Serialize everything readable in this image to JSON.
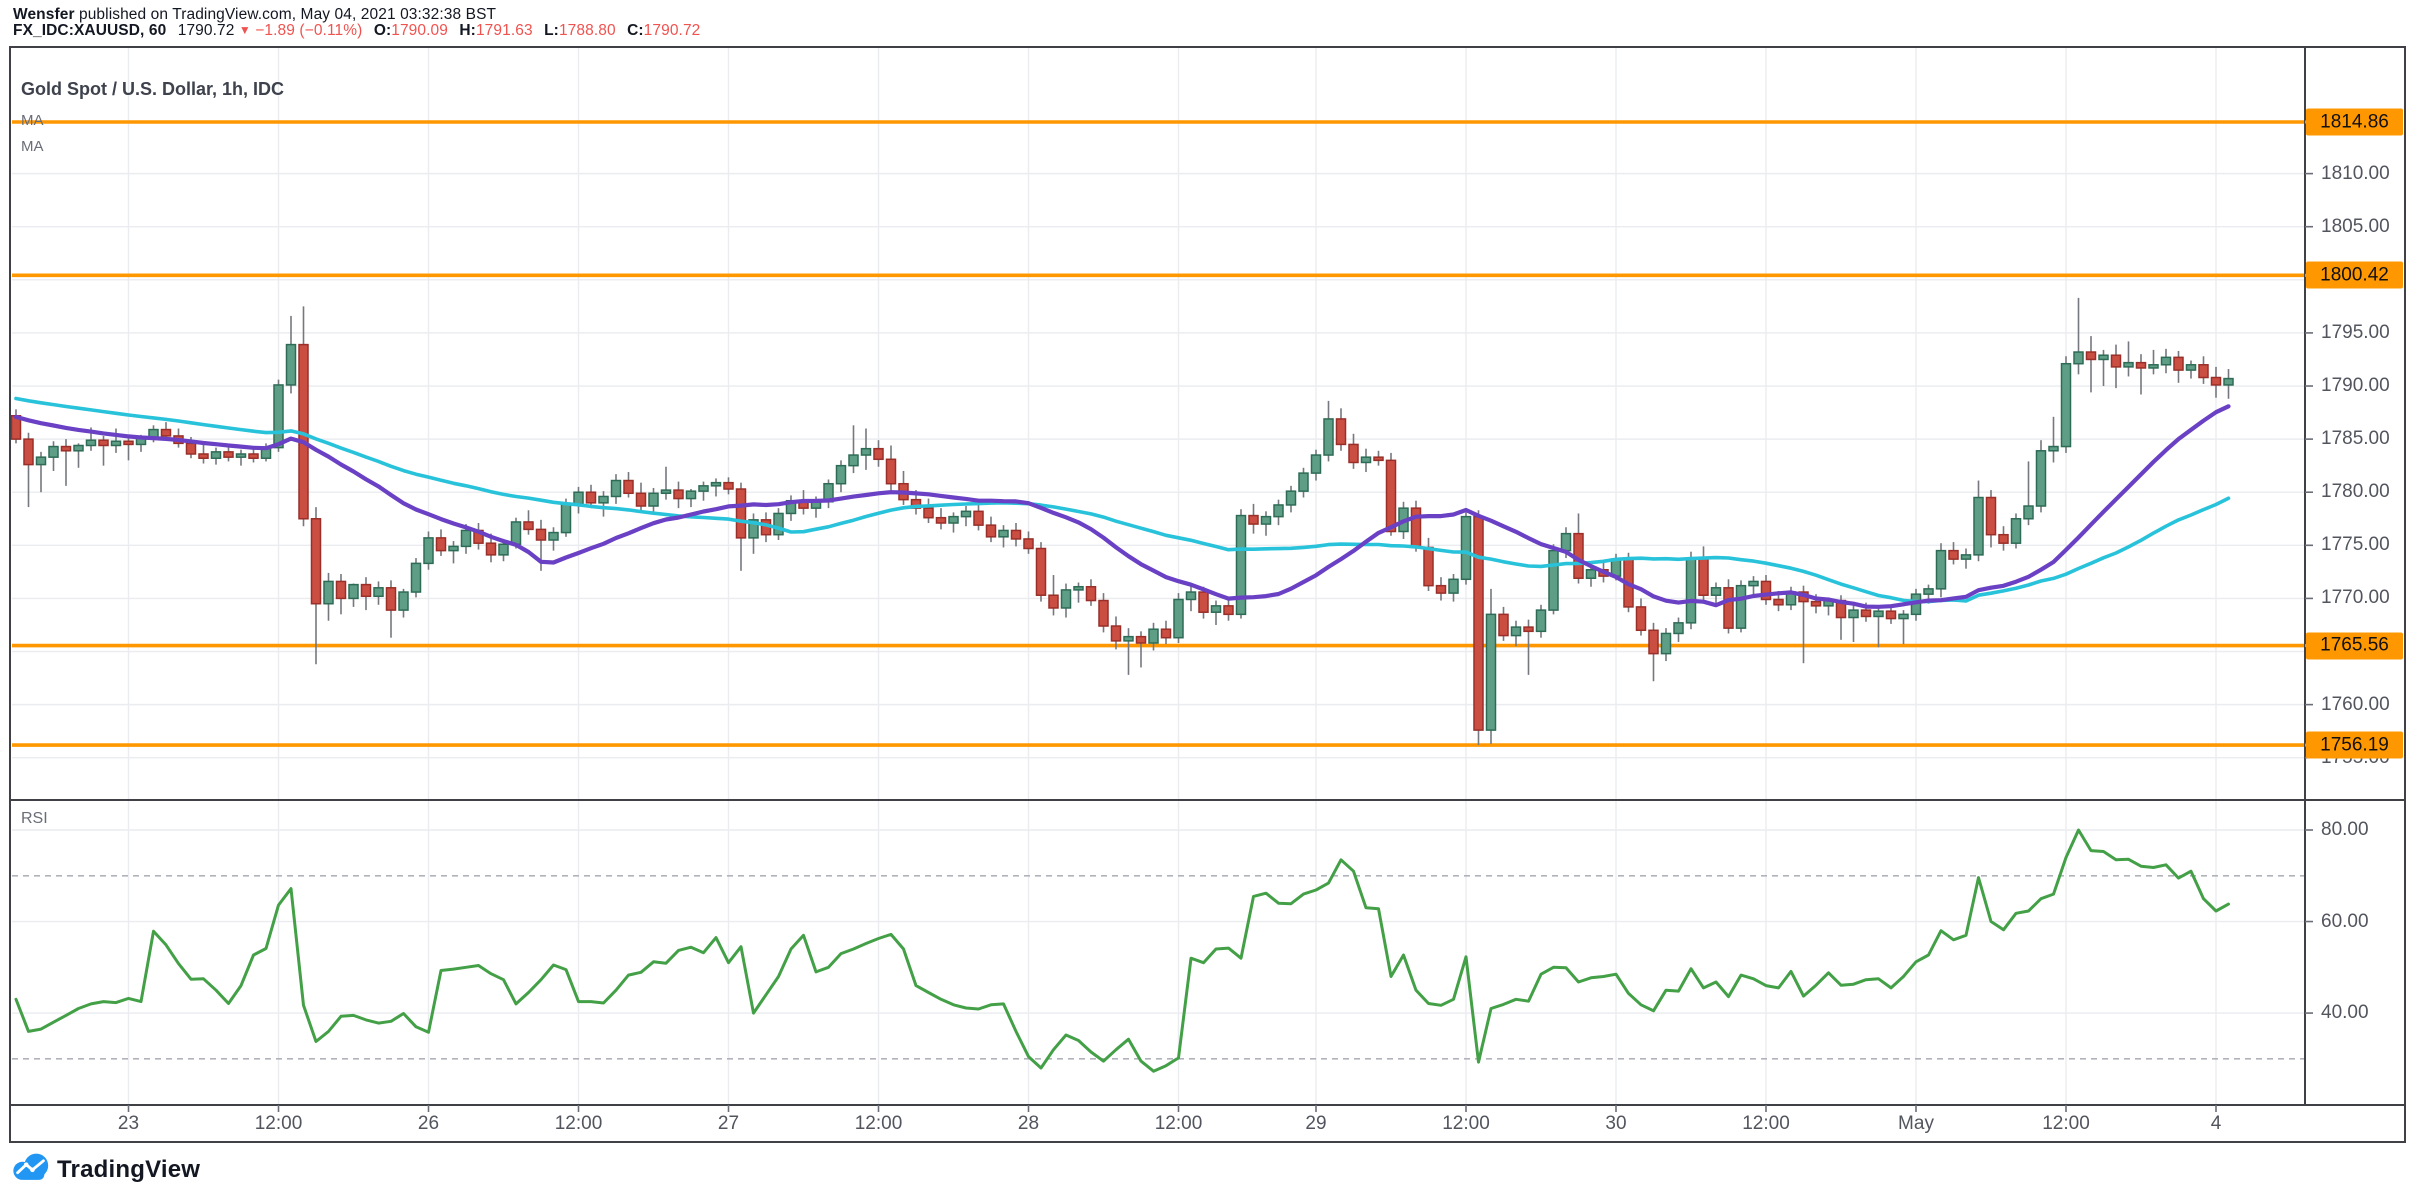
{
  "header": {
    "author": "Wensfer",
    "published_text": " published on TradingView.com, May 04, 2021 03:32:38 BST",
    "symbol": "FX_IDC:XAUUSD, 60",
    "last_price": "1790.72",
    "direction_icon": "▼",
    "change": "−1.89 (−0.11%)",
    "o_label": "O:",
    "o_value": "1790.09",
    "h_label": "H:",
    "h_value": "1791.63",
    "l_label": "L:",
    "l_value": "1788.80",
    "c_label": "C:",
    "c_value": "1790.72"
  },
  "chart": {
    "title": "Gold Spot / U.S. Dollar, 1h, IDC",
    "ma_labels": [
      "MA",
      "MA"
    ],
    "rsi_label": "RSI"
  },
  "watermark": {
    "brand": "TradingView"
  },
  "colors": {
    "up_fill": "#5f9e86",
    "up_stroke": "#2e6b56",
    "down_fill": "#cb4e42",
    "down_stroke": "#992f28",
    "wick": "#75787e",
    "ma_fast": "#6a40c4",
    "ma_slow": "#28c3da",
    "level": "#ff9800",
    "rsi_line": "#43a047",
    "grid": "#eaecef",
    "frame": "#3f4147",
    "axis_text": "#52555e",
    "accent_red": "#ef5350",
    "logo_blue": "#2196f3"
  },
  "chart_data": {
    "type": "candlestick+rsi",
    "title": "Gold Spot / U.S. Dollar, 1h, IDC",
    "interval": "1h",
    "legend_entries": [
      "MA",
      "MA",
      "RSI"
    ],
    "grid": true,
    "price_axis": {
      "plain_ticks": [
        1810,
        1805,
        1795,
        1790,
        1785,
        1780,
        1775,
        1770,
        1760,
        1755
      ],
      "tick_format_suffix": ".00",
      "level_badges": [
        "1814.86",
        "1800.42",
        "1765.56",
        "1756.19"
      ]
    },
    "level_lines": [
      1814.86,
      1800.42,
      1765.56,
      1756.19
    ],
    "grid_prices": [
      1810,
      1805,
      1800,
      1795,
      1790,
      1785,
      1780,
      1775,
      1770,
      1765,
      1760,
      1755
    ],
    "x_ticks": [
      {
        "label": "23",
        "bar": 9
      },
      {
        "label": "12:00",
        "bar": 21
      },
      {
        "label": "26",
        "bar": 33
      },
      {
        "label": "12:00",
        "bar": 45
      },
      {
        "label": "27",
        "bar": 57
      },
      {
        "label": "12:00",
        "bar": 69
      },
      {
        "label": "28",
        "bar": 81
      },
      {
        "label": "12:00",
        "bar": 93
      },
      {
        "label": "29",
        "bar": 104
      },
      {
        "label": "12:00",
        "bar": 116
      },
      {
        "label": "30",
        "bar": 128
      },
      {
        "label": "12:00",
        "bar": 140
      },
      {
        "label": "May",
        "bar": 152
      },
      {
        "label": "12:00",
        "bar": 164
      },
      {
        "label": "4",
        "bar": 176
      }
    ],
    "ma": {
      "fast_period": 20,
      "slow_period": 40,
      "seed_closes": [
        1791,
        1791,
        1791,
        1791,
        1791,
        1791,
        1791,
        1791,
        1791,
        1791,
        1791,
        1791,
        1790.8,
        1790.6,
        1790.4,
        1790.2,
        1790,
        1789.8,
        1789.6,
        1789.4,
        1789.2,
        1789,
        1788.8,
        1788.6,
        1788.4,
        1788.2,
        1788,
        1787.8,
        1787.6,
        1787.4,
        1787.2,
        1787,
        1786.8,
        1786.6,
        1786.4,
        1786.2,
        1786,
        1785.8,
        1785.6,
        1785.4
      ]
    },
    "rsi_axis": {
      "plain_ticks": [
        80,
        60,
        40
      ],
      "dashed_bands": [
        70,
        30
      ]
    },
    "candles": [
      [
        1787.2,
        1787.8,
        1784.6,
        1785.0
      ],
      [
        1785.0,
        1785.6,
        1778.6,
        1782.6
      ],
      [
        1782.6,
        1783.8,
        1780.0,
        1783.3
      ],
      [
        1783.3,
        1784.8,
        1782.0,
        1784.3
      ],
      [
        1784.3,
        1785.0,
        1780.6,
        1783.9
      ],
      [
        1783.9,
        1784.6,
        1782.3,
        1784.4
      ],
      [
        1784.4,
        1786.1,
        1783.9,
        1784.9
      ],
      [
        1784.9,
        1785.3,
        1782.5,
        1784.4
      ],
      [
        1784.4,
        1786.0,
        1783.7,
        1784.8
      ],
      [
        1784.8,
        1785.2,
        1783.0,
        1784.5
      ],
      [
        1784.5,
        1785.4,
        1783.8,
        1785.1
      ],
      [
        1785.1,
        1786.3,
        1784.7,
        1785.9
      ],
      [
        1785.9,
        1786.6,
        1784.9,
        1785.3
      ],
      [
        1785.3,
        1786.0,
        1784.2,
        1784.6
      ],
      [
        1784.6,
        1785.2,
        1783.2,
        1783.6
      ],
      [
        1783.6,
        1784.5,
        1782.7,
        1783.2
      ],
      [
        1783.2,
        1784.2,
        1782.6,
        1783.8
      ],
      [
        1783.8,
        1784.4,
        1782.9,
        1783.3
      ],
      [
        1783.3,
        1784.0,
        1782.5,
        1783.6
      ],
      [
        1783.6,
        1784.2,
        1782.8,
        1783.2
      ],
      [
        1783.2,
        1784.6,
        1782.9,
        1784.2
      ],
      [
        1784.2,
        1790.6,
        1783.8,
        1790.1
      ],
      [
        1790.1,
        1796.6,
        1789.3,
        1793.9
      ],
      [
        1793.9,
        1797.5,
        1776.8,
        1777.5
      ],
      [
        1777.5,
        1778.6,
        1763.8,
        1769.5
      ],
      [
        1769.5,
        1772.4,
        1767.9,
        1771.6
      ],
      [
        1771.6,
        1772.3,
        1768.5,
        1770.0
      ],
      [
        1770.0,
        1771.4,
        1769.2,
        1771.3
      ],
      [
        1771.3,
        1772.0,
        1768.9,
        1770.2
      ],
      [
        1770.2,
        1771.6,
        1769.4,
        1771.0
      ],
      [
        1771.0,
        1771.7,
        1766.3,
        1768.9
      ],
      [
        1768.9,
        1770.9,
        1768.2,
        1770.6
      ],
      [
        1770.6,
        1773.8,
        1770.1,
        1773.3
      ],
      [
        1773.3,
        1776.3,
        1772.7,
        1775.7
      ],
      [
        1775.7,
        1776.5,
        1774.0,
        1774.5
      ],
      [
        1774.5,
        1775.4,
        1773.3,
        1774.9
      ],
      [
        1774.9,
        1777.0,
        1774.2,
        1776.4
      ],
      [
        1776.4,
        1777.1,
        1774.6,
        1775.2
      ],
      [
        1775.2,
        1776.1,
        1773.4,
        1774.1
      ],
      [
        1774.1,
        1775.6,
        1773.5,
        1775.1
      ],
      [
        1775.1,
        1777.6,
        1774.7,
        1777.2
      ],
      [
        1777.2,
        1778.3,
        1776.0,
        1776.5
      ],
      [
        1776.5,
        1777.4,
        1772.6,
        1775.5
      ],
      [
        1775.5,
        1776.7,
        1774.5,
        1776.2
      ],
      [
        1776.2,
        1779.4,
        1775.8,
        1778.9
      ],
      [
        1778.9,
        1780.5,
        1778.0,
        1780.0
      ],
      [
        1780.0,
        1780.7,
        1778.5,
        1779.0
      ],
      [
        1779.0,
        1780.1,
        1777.7,
        1779.6
      ],
      [
        1779.6,
        1781.7,
        1778.9,
        1781.1
      ],
      [
        1781.1,
        1781.9,
        1779.5,
        1779.9
      ],
      [
        1779.9,
        1780.9,
        1778.1,
        1778.7
      ],
      [
        1778.7,
        1780.4,
        1778.0,
        1779.9
      ],
      [
        1779.9,
        1782.4,
        1779.3,
        1780.2
      ],
      [
        1780.2,
        1781.0,
        1778.5,
        1779.4
      ],
      [
        1779.4,
        1780.3,
        1778.6,
        1780.1
      ],
      [
        1780.1,
        1781.0,
        1779.2,
        1780.6
      ],
      [
        1780.6,
        1781.3,
        1779.6,
        1780.9
      ],
      [
        1780.9,
        1781.4,
        1779.8,
        1780.3
      ],
      [
        1780.3,
        1780.9,
        1772.6,
        1775.7
      ],
      [
        1775.7,
        1778.0,
        1774.2,
        1777.4
      ],
      [
        1777.4,
        1778.1,
        1775.3,
        1776.0
      ],
      [
        1776.0,
        1778.5,
        1775.5,
        1778.0
      ],
      [
        1778.0,
        1779.7,
        1777.3,
        1779.2
      ],
      [
        1779.2,
        1780.2,
        1777.9,
        1778.5
      ],
      [
        1778.5,
        1779.6,
        1777.6,
        1779.1
      ],
      [
        1779.1,
        1781.2,
        1778.5,
        1780.8
      ],
      [
        1780.8,
        1783.0,
        1780.0,
        1782.5
      ],
      [
        1782.5,
        1786.3,
        1781.8,
        1783.5
      ],
      [
        1783.5,
        1786.0,
        1782.1,
        1784.1
      ],
      [
        1784.1,
        1784.9,
        1782.4,
        1783.1
      ],
      [
        1783.1,
        1784.4,
        1780.0,
        1780.8
      ],
      [
        1780.8,
        1782.0,
        1778.8,
        1779.3
      ],
      [
        1779.3,
        1780.2,
        1777.9,
        1778.5
      ],
      [
        1778.5,
        1779.4,
        1777.1,
        1777.6
      ],
      [
        1777.6,
        1778.5,
        1776.5,
        1777.1
      ],
      [
        1777.1,
        1778.1,
        1776.2,
        1777.7
      ],
      [
        1777.7,
        1778.7,
        1776.8,
        1778.2
      ],
      [
        1778.2,
        1778.9,
        1776.4,
        1776.9
      ],
      [
        1776.9,
        1777.7,
        1775.3,
        1775.8
      ],
      [
        1775.8,
        1776.9,
        1774.8,
        1776.4
      ],
      [
        1776.4,
        1777.1,
        1774.9,
        1775.6
      ],
      [
        1775.6,
        1776.3,
        1774.2,
        1774.7
      ],
      [
        1774.7,
        1775.3,
        1769.7,
        1770.3
      ],
      [
        1770.3,
        1772.2,
        1768.4,
        1769.1
      ],
      [
        1769.1,
        1771.4,
        1768.2,
        1770.8
      ],
      [
        1770.8,
        1771.5,
        1769.6,
        1771.1
      ],
      [
        1771.1,
        1771.8,
        1769.3,
        1769.8
      ],
      [
        1769.8,
        1770.5,
        1766.8,
        1767.4
      ],
      [
        1767.4,
        1768.3,
        1765.2,
        1766.0
      ],
      [
        1766.0,
        1767.2,
        1762.8,
        1766.4
      ],
      [
        1766.4,
        1766.9,
        1763.5,
        1765.8
      ],
      [
        1765.8,
        1767.7,
        1765.1,
        1767.1
      ],
      [
        1767.1,
        1767.9,
        1765.7,
        1766.3
      ],
      [
        1766.3,
        1770.5,
        1765.8,
        1769.9
      ],
      [
        1769.9,
        1771.2,
        1768.8,
        1770.6
      ],
      [
        1770.6,
        1771.1,
        1768.1,
        1768.7
      ],
      [
        1768.7,
        1769.8,
        1767.5,
        1769.3
      ],
      [
        1769.3,
        1770.1,
        1767.9,
        1768.5
      ],
      [
        1768.5,
        1778.4,
        1768.1,
        1777.8
      ],
      [
        1777.8,
        1778.9,
        1776.1,
        1777.0
      ],
      [
        1777.0,
        1778.2,
        1775.9,
        1777.7
      ],
      [
        1777.7,
        1779.3,
        1776.9,
        1778.8
      ],
      [
        1778.8,
        1780.6,
        1778.1,
        1780.1
      ],
      [
        1780.1,
        1782.3,
        1779.5,
        1781.8
      ],
      [
        1781.8,
        1784.0,
        1781.1,
        1783.5
      ],
      [
        1783.5,
        1788.6,
        1782.9,
        1786.9
      ],
      [
        1786.9,
        1787.9,
        1783.9,
        1784.5
      ],
      [
        1784.5,
        1785.5,
        1782.2,
        1782.8
      ],
      [
        1782.8,
        1784.1,
        1781.9,
        1783.3
      ],
      [
        1783.3,
        1783.9,
        1782.5,
        1783.0
      ],
      [
        1783.0,
        1783.7,
        1775.9,
        1776.3
      ],
      [
        1776.3,
        1779.1,
        1775.6,
        1778.5
      ],
      [
        1778.5,
        1779.2,
        1774.4,
        1774.8
      ],
      [
        1774.8,
        1775.7,
        1770.7,
        1771.2
      ],
      [
        1771.2,
        1772.0,
        1769.8,
        1770.5
      ],
      [
        1770.5,
        1772.3,
        1769.7,
        1771.8
      ],
      [
        1771.8,
        1778.1,
        1771.3,
        1777.7
      ],
      [
        1777.7,
        1778.3,
        1756.2,
        1757.6
      ],
      [
        1757.6,
        1770.9,
        1756.3,
        1768.5
      ],
      [
        1768.5,
        1769.2,
        1766.0,
        1766.5
      ],
      [
        1766.5,
        1767.9,
        1765.5,
        1767.3
      ],
      [
        1767.3,
        1768.0,
        1762.8,
        1766.9
      ],
      [
        1766.9,
        1769.4,
        1766.3,
        1768.9
      ],
      [
        1768.9,
        1775.1,
        1768.5,
        1774.5
      ],
      [
        1774.5,
        1776.7,
        1773.8,
        1776.1
      ],
      [
        1776.1,
        1778.0,
        1771.4,
        1771.9
      ],
      [
        1771.9,
        1773.3,
        1771.1,
        1772.7
      ],
      [
        1772.7,
        1773.5,
        1771.5,
        1772.1
      ],
      [
        1772.1,
        1774.2,
        1771.7,
        1773.7
      ],
      [
        1773.7,
        1774.3,
        1768.7,
        1769.2
      ],
      [
        1769.2,
        1770.0,
        1766.5,
        1767.0
      ],
      [
        1767.0,
        1767.7,
        1762.2,
        1764.8
      ],
      [
        1764.8,
        1767.2,
        1764.1,
        1766.7
      ],
      [
        1766.7,
        1768.2,
        1765.9,
        1767.7
      ],
      [
        1767.7,
        1774.4,
        1767.1,
        1773.8
      ],
      [
        1773.8,
        1774.9,
        1769.8,
        1770.3
      ],
      [
        1770.3,
        1771.5,
        1769.5,
        1771.0
      ],
      [
        1771.0,
        1771.8,
        1766.7,
        1767.2
      ],
      [
        1767.2,
        1771.7,
        1766.8,
        1771.2
      ],
      [
        1771.2,
        1772.1,
        1770.1,
        1771.6
      ],
      [
        1771.6,
        1772.2,
        1769.4,
        1769.9
      ],
      [
        1769.9,
        1770.7,
        1768.8,
        1769.4
      ],
      [
        1769.4,
        1771.1,
        1768.9,
        1770.6
      ],
      [
        1770.6,
        1771.2,
        1763.9,
        1769.7
      ],
      [
        1769.7,
        1770.4,
        1768.6,
        1769.3
      ],
      [
        1769.3,
        1770.1,
        1768.4,
        1769.8
      ],
      [
        1769.8,
        1770.3,
        1766.1,
        1768.2
      ],
      [
        1768.2,
        1769.5,
        1765.9,
        1768.9
      ],
      [
        1768.9,
        1769.6,
        1767.8,
        1768.3
      ],
      [
        1768.3,
        1769.2,
        1765.4,
        1768.8
      ],
      [
        1768.8,
        1769.4,
        1767.6,
        1768.1
      ],
      [
        1768.1,
        1768.9,
        1765.7,
        1768.5
      ],
      [
        1768.5,
        1770.9,
        1767.9,
        1770.4
      ],
      [
        1770.4,
        1771.3,
        1769.5,
        1770.9
      ],
      [
        1770.9,
        1775.2,
        1770.1,
        1774.5
      ],
      [
        1774.5,
        1775.3,
        1773.2,
        1773.7
      ],
      [
        1773.7,
        1774.7,
        1772.8,
        1774.1
      ],
      [
        1774.1,
        1781.1,
        1773.5,
        1779.5
      ],
      [
        1779.5,
        1780.2,
        1774.8,
        1776.0
      ],
      [
        1776.0,
        1776.8,
        1774.5,
        1775.2
      ],
      [
        1775.2,
        1778.0,
        1774.7,
        1777.5
      ],
      [
        1777.5,
        1782.9,
        1776.9,
        1778.7
      ],
      [
        1778.7,
        1784.9,
        1778.1,
        1783.9
      ],
      [
        1783.9,
        1787.1,
        1782.8,
        1784.3
      ],
      [
        1784.3,
        1792.8,
        1783.7,
        1792.1
      ],
      [
        1792.1,
        1798.3,
        1791.1,
        1793.2
      ],
      [
        1793.2,
        1794.7,
        1789.4,
        1792.5
      ],
      [
        1792.5,
        1793.4,
        1790.0,
        1792.9
      ],
      [
        1792.9,
        1793.9,
        1789.8,
        1791.8
      ],
      [
        1791.8,
        1794.2,
        1790.9,
        1792.2
      ],
      [
        1792.2,
        1793.0,
        1789.2,
        1791.7
      ],
      [
        1791.7,
        1793.4,
        1791.1,
        1792.0
      ],
      [
        1792.0,
        1793.5,
        1791.2,
        1792.7
      ],
      [
        1792.7,
        1793.3,
        1790.3,
        1791.5
      ],
      [
        1791.5,
        1792.4,
        1790.7,
        1792.0
      ],
      [
        1792.0,
        1792.8,
        1790.2,
        1790.8
      ],
      [
        1790.8,
        1791.8,
        1788.9,
        1790.1
      ],
      [
        1790.1,
        1791.6,
        1788.8,
        1790.7
      ]
    ],
    "rsi": [
      43,
      36,
      36.5,
      38,
      39.5,
      41,
      42,
      42.5,
      42.3,
      43.2,
      42.5,
      57.9,
      54.9,
      50.8,
      47.4,
      47.5,
      45,
      42.1,
      46,
      52.7,
      54.1,
      63.6,
      67.2,
      41.7,
      33.8,
      36,
      39.3,
      39.5,
      38.5,
      37.8,
      38.2,
      39.9,
      37,
      35.8,
      49.3,
      49.6,
      50,
      50.4,
      48.6,
      47.3,
      42,
      44.5,
      47.3,
      50.5,
      49.5,
      42.5,
      42.5,
      42.2,
      45,
      48.3,
      48.9,
      51.2,
      50.9,
      53.7,
      54.4,
      53.2,
      56.5,
      51,
      54.5,
      40,
      44,
      48,
      54,
      57,
      49,
      50,
      53,
      54,
      55.2,
      56.3,
      57.2,
      54,
      46,
      44.5,
      43,
      41.8,
      41.1,
      40.9,
      41.8,
      42,
      36,
      30.5,
      28,
      32,
      35.2,
      34,
      31.5,
      29.5,
      32,
      34.3,
      29.5,
      27.3,
      28.5,
      30.2,
      52,
      51,
      54,
      54.2,
      52,
      65.5,
      66.2,
      64,
      63.9,
      66,
      66.9,
      68.4,
      73.5,
      71,
      63,
      62.8,
      48,
      52.7,
      45,
      42.1,
      41.7,
      43,
      52.3,
      29.3,
      41,
      41.9,
      43,
      42.6,
      48.5,
      50,
      49.9,
      46.8,
      47.7,
      48,
      48.5,
      44.3,
      41.8,
      40.5,
      45,
      44.8,
      49.7,
      45.5,
      46.8,
      43.6,
      48.3,
      47.5,
      46,
      45.5,
      49.1,
      43.7,
      46.1,
      48.8,
      46.1,
      46.3,
      47.3,
      47.5,
      45.5,
      48,
      51.2,
      52.7,
      58,
      56,
      57,
      69.6,
      60,
      58.2,
      61.8,
      62.3,
      65,
      66,
      74,
      80,
      75.5,
      75.3,
      73.5,
      73.6,
      72.1,
      71.8,
      72.4,
      69.5,
      71,
      65,
      62.3,
      63.8
    ]
  }
}
